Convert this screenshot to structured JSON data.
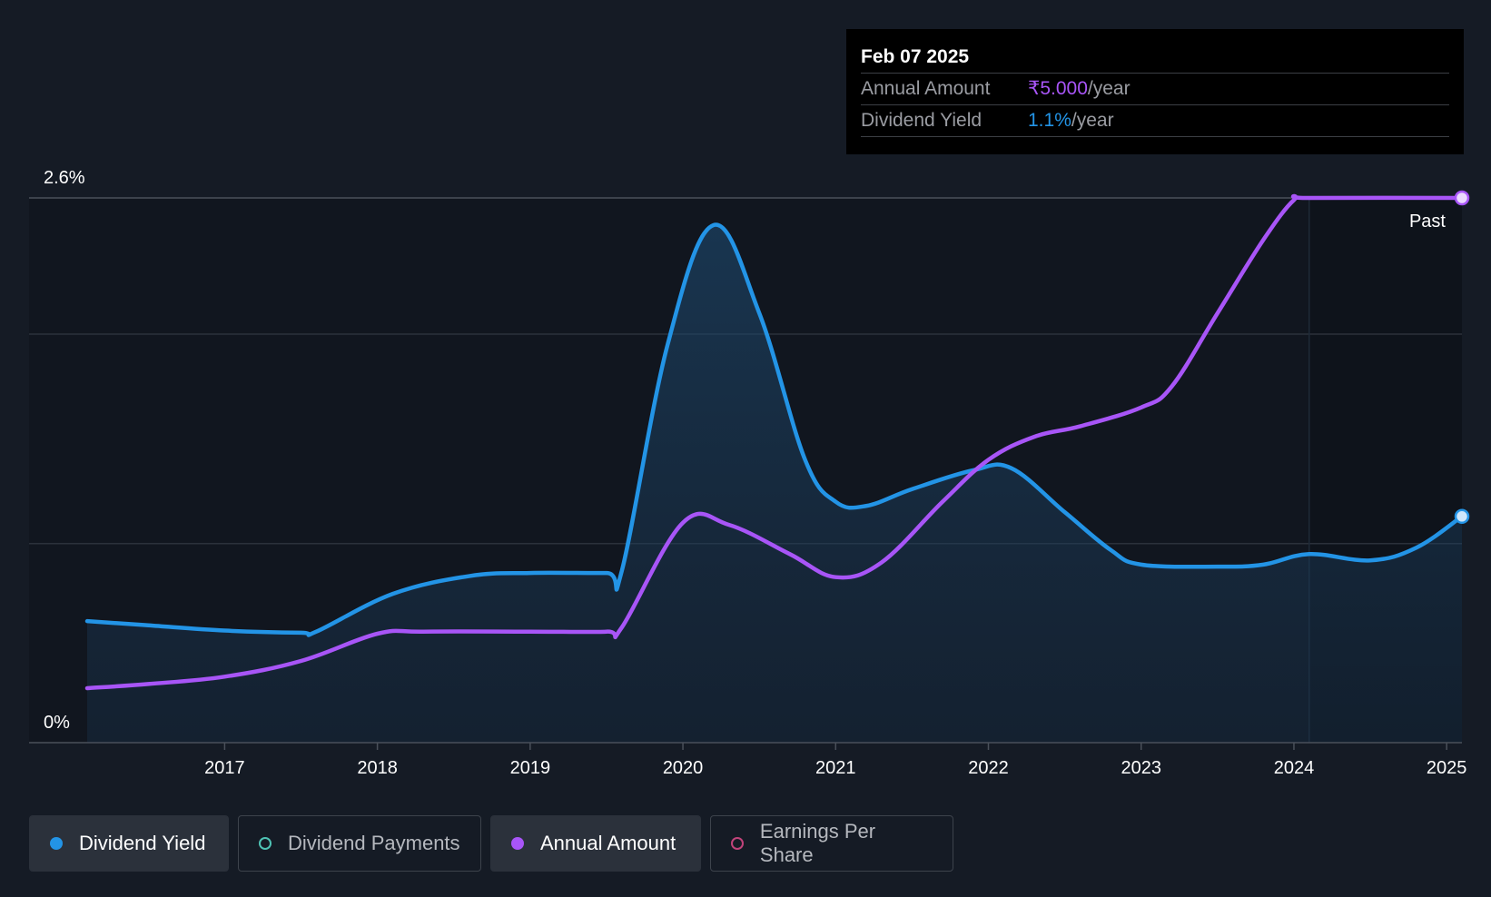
{
  "chart_data": {
    "type": "line",
    "y_tick_labels": [
      "2.6%",
      "0%"
    ],
    "ylim": [
      0,
      2.6
    ],
    "x_tick_labels": [
      "2017",
      "2018",
      "2019",
      "2020",
      "2021",
      "2022",
      "2023",
      "2024",
      "2025"
    ],
    "xlim": [
      2016.1,
      2025.1
    ],
    "past_label": "Past",
    "past_start": 2024.1,
    "grid": true,
    "series": [
      {
        "name": "Dividend Yield",
        "color": "#2394e6",
        "points": [
          [
            2016.1,
            0.58
          ],
          [
            2016.5,
            0.56
          ],
          [
            2017.0,
            0.535
          ],
          [
            2017.5,
            0.525
          ],
          [
            2017.6,
            0.53
          ],
          [
            2018.1,
            0.71
          ],
          [
            2018.6,
            0.795
          ],
          [
            2019.0,
            0.81
          ],
          [
            2019.5,
            0.81
          ],
          [
            2019.6,
            0.82
          ],
          [
            2019.9,
            1.9
          ],
          [
            2020.2,
            2.47
          ],
          [
            2020.5,
            2.05
          ],
          [
            2020.8,
            1.35
          ],
          [
            2021.0,
            1.15
          ],
          [
            2021.2,
            1.13
          ],
          [
            2021.5,
            1.21
          ],
          [
            2021.9,
            1.3
          ],
          [
            2022.15,
            1.31
          ],
          [
            2022.5,
            1.1
          ],
          [
            2022.8,
            0.92
          ],
          [
            2023.0,
            0.85
          ],
          [
            2023.5,
            0.84
          ],
          [
            2023.8,
            0.85
          ],
          [
            2024.1,
            0.9
          ],
          [
            2024.5,
            0.87
          ],
          [
            2024.8,
            0.93
          ],
          [
            2025.1,
            1.08
          ]
        ]
      },
      {
        "name": "Annual Amount",
        "color": "#a855f7",
        "points": [
          [
            2016.1,
            0.26
          ],
          [
            2016.5,
            0.28
          ],
          [
            2017.0,
            0.315
          ],
          [
            2017.5,
            0.39
          ],
          [
            2018.0,
            0.52
          ],
          [
            2018.3,
            0.53
          ],
          [
            2019.0,
            0.53
          ],
          [
            2019.5,
            0.53
          ],
          [
            2019.6,
            0.55
          ],
          [
            2020.0,
            1.05
          ],
          [
            2020.3,
            1.04
          ],
          [
            2020.7,
            0.9
          ],
          [
            2021.0,
            0.79
          ],
          [
            2021.3,
            0.86
          ],
          [
            2021.7,
            1.15
          ],
          [
            2022.0,
            1.35
          ],
          [
            2022.3,
            1.46
          ],
          [
            2022.6,
            1.51
          ],
          [
            2023.0,
            1.6
          ],
          [
            2023.2,
            1.7
          ],
          [
            2023.5,
            2.05
          ],
          [
            2023.8,
            2.4
          ],
          [
            2024.0,
            2.59
          ],
          [
            2024.1,
            2.6
          ],
          [
            2025.1,
            2.6
          ]
        ]
      }
    ]
  },
  "tooltip": {
    "date": "Feb 07 2025",
    "annual_label": "Annual Amount",
    "annual_value": "₹5.000",
    "annual_unit": "/year",
    "yield_label": "Dividend Yield",
    "yield_value": "1.1%",
    "yield_unit": "/year"
  },
  "legend": [
    {
      "label": "Dividend Yield",
      "color": "#2394e6",
      "active": true
    },
    {
      "label": "Dividend Payments",
      "color": "#4fc3b5",
      "active": false
    },
    {
      "label": "Annual Amount",
      "color": "#a855f7",
      "active": true
    },
    {
      "label": "Earnings Per Share",
      "color": "#c0437a",
      "active": false
    }
  ]
}
